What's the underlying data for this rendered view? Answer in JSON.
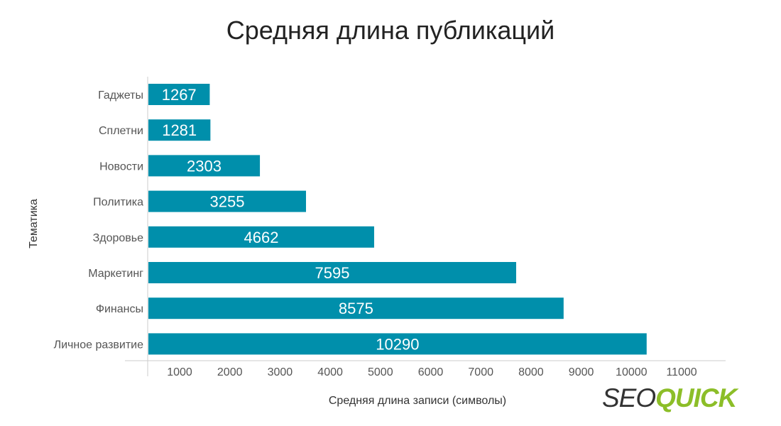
{
  "chart_data": {
    "type": "bar",
    "orientation": "horizontal",
    "title": "Средняя длина публикаций",
    "xlabel": "Средняя длина записи (символы)",
    "ylabel": "Тематика",
    "categories": [
      "Гаджеты",
      "Сплетни",
      "Новости",
      "Политика",
      "Здоровье",
      "Маркетинг",
      "Финансы",
      "Личное развитие"
    ],
    "values": [
      1267,
      1281,
      2303,
      3255,
      4662,
      7595,
      8575,
      10290
    ],
    "data_labels": [
      "1267",
      "1281",
      "2303",
      "3255",
      "4662",
      "7595",
      "8575",
      "10290"
    ],
    "x_ticks": [
      "1000",
      "2000",
      "3000",
      "4000",
      "5000",
      "6000",
      "7000",
      "8000",
      "9000",
      "10000",
      "11000"
    ],
    "xlim": [
      0,
      11000
    ],
    "bar_color": "#008fab",
    "grid": false,
    "legend": "none"
  },
  "logo": {
    "seo": "SEO",
    "quick": "QUICK"
  }
}
